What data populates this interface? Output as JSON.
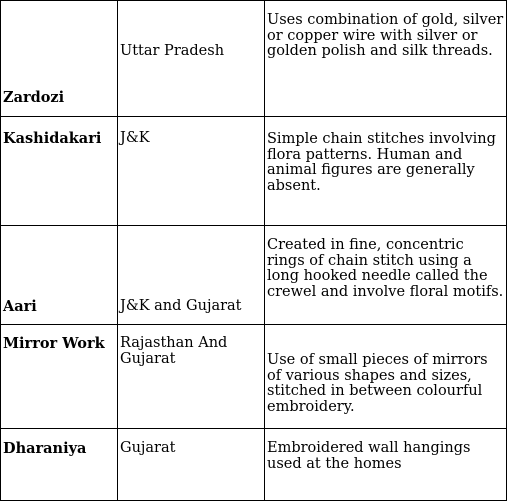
{
  "rows": [
    {
      "name": "Zardozi",
      "state": "Uttar Pradesh",
      "description": "Uses combination of gold, silver or copper wire with silver or golden polish and silk threads."
    },
    {
      "name": "Kashidakari",
      "state": "J&K",
      "description": "Simple chain stitches involving flora patterns. Human and animal figures are generally absent."
    },
    {
      "name": "Aari",
      "state": "J&K and Gujarat",
      "description": "Created in fine, concentric rings of chain stitch using a long hooked needle called the crewel and involve floral motifs."
    },
    {
      "name": "Mirror Work",
      "state": "Rajasthan And Gujarat",
      "description": "Use of small pieces of mirrors of various shapes and sizes, stitched in between colourful embroidery."
    },
    {
      "name": "Dharaniya",
      "state": "Gujarat",
      "description": "Embroidered wall hangings used at the homes"
    }
  ]
}
